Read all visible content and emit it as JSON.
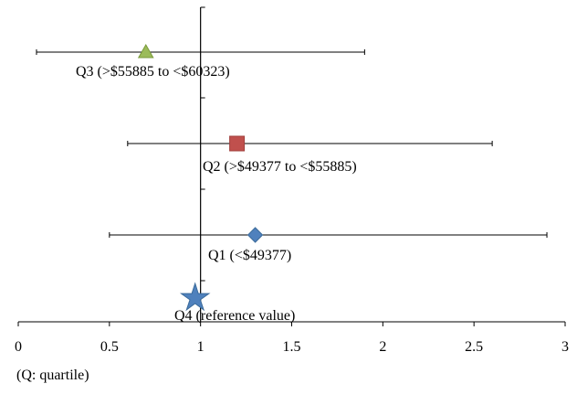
{
  "chart_data": {
    "type": "scatter",
    "title": "",
    "xlabel": "",
    "ylabel": "",
    "xlim": [
      0,
      3
    ],
    "x_ticks": [
      "0",
      "0.5",
      "1",
      "1.5",
      "2",
      "2.5",
      "3"
    ],
    "reference_x": 1,
    "grid": false,
    "legend": "none",
    "points": [
      {
        "label": "Q3 (>$55885 to <$60323)",
        "x": 0.7,
        "ci": [
          0.1,
          1.9
        ],
        "marker": "triangle",
        "color": "#9BBB59"
      },
      {
        "label": "Q2 (>$49377 to <$55885)",
        "x": 1.2,
        "ci": [
          0.6,
          2.6
        ],
        "marker": "square",
        "color": "#C0504D"
      },
      {
        "label": "Q1 (<$49377)",
        "x": 1.3,
        "ci": [
          0.5,
          2.9
        ],
        "marker": "diamond",
        "color": "#4F81BD"
      },
      {
        "label": "Q4 (reference value)",
        "x": 0.97,
        "ci": null,
        "marker": "star",
        "color": "#4F81BD"
      }
    ]
  },
  "footnote": "(Q: quartile)"
}
